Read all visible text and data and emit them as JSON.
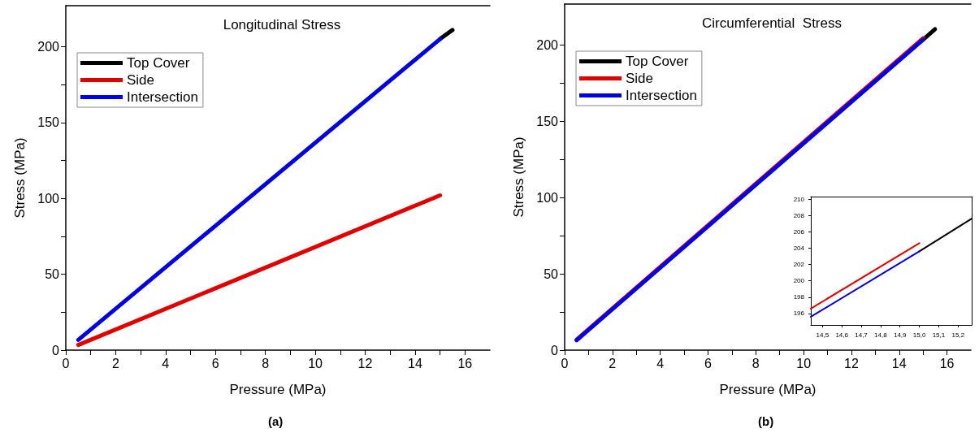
{
  "chart_data": [
    {
      "type": "line",
      "title": "Longitudinal Stress",
      "xlabel": "Pressure (MPa)",
      "ylabel": "Stress (MPa)",
      "annotations": [
        "(a)"
      ],
      "legend": "top left",
      "grid": false,
      "xlim": [
        0,
        17
      ],
      "ylim": [
        0,
        227
      ],
      "xticks": [
        0,
        {
          "value": 1,
          "label": null
        },
        2,
        {
          "value": 3,
          "label": null
        },
        4,
        {
          "value": 5,
          "label": null
        },
        6,
        {
          "value": 7,
          "label": null
        },
        8,
        {
          "value": 9,
          "label": null
        },
        10,
        {
          "value": 11,
          "label": null
        },
        12,
        {
          "value": 13,
          "label": null
        },
        14,
        {
          "value": 15,
          "label": null
        },
        16
      ],
      "yticks": [
        0,
        {
          "value": 25,
          "label": null
        },
        50,
        {
          "value": 75,
          "label": null
        },
        100,
        {
          "value": 125,
          "label": null
        },
        150,
        {
          "value": 175,
          "label": null
        },
        200
      ],
      "series": [
        {
          "name": "Top Cover",
          "color": "#000000",
          "x": [
            15,
            15.5
          ],
          "values": [
            205,
            211
          ]
        },
        {
          "name": "Side",
          "color": "#e00000",
          "x": [
            0.5,
            15
          ],
          "values": [
            3.4,
            102
          ]
        },
        {
          "name": "Intersection",
          "color": "#0000e0",
          "x": [
            0.5,
            15
          ],
          "values": [
            6.8,
            205
          ]
        }
      ]
    },
    {
      "type": "line",
      "title": "Circumferential  Stress",
      "xlabel": "Pressure (MPa)",
      "ylabel": "Stress (MPa)",
      "annotations": [
        "(b)"
      ],
      "legend": "top left",
      "grid": false,
      "xlim": [
        0,
        17
      ],
      "ylim": [
        0,
        227
      ],
      "xticks": [
        0,
        {
          "value": 1,
          "label": null
        },
        2,
        {
          "value": 3,
          "label": null
        },
        4,
        {
          "value": 5,
          "label": null
        },
        6,
        {
          "value": 7,
          "label": null
        },
        8,
        {
          "value": 9,
          "label": null
        },
        10,
        {
          "value": 11,
          "label": null
        },
        12,
        {
          "value": 13,
          "label": null
        },
        14,
        {
          "value": 15,
          "label": null
        },
        16
      ],
      "yticks": [
        0,
        {
          "value": 25,
          "label": null
        },
        50,
        {
          "value": 75,
          "label": null
        },
        100,
        {
          "value": 125,
          "label": null
        },
        150,
        {
          "value": 175,
          "label": null
        },
        200
      ],
      "series": [
        {
          "name": "Top Cover",
          "color": "#000000",
          "x": [
            15,
            15.5
          ],
          "values": [
            203.6,
            210.5
          ]
        },
        {
          "name": "Side",
          "color": "#e00000",
          "x": [
            0.5,
            15
          ],
          "values": [
            6.9,
            204.6
          ]
        },
        {
          "name": "Intersection",
          "color": "#0000e0",
          "x": [
            0.5,
            15
          ],
          "values": [
            6.5,
            203.6
          ]
        }
      ]
    },
    {
      "type": "line",
      "grid": false,
      "xlim": [
        14.44,
        15.27
      ],
      "ylim": [
        194.6,
        210.3
      ],
      "xticks": [
        {
          "value": 14.5,
          "label": "14,5"
        },
        {
          "value": 14.6,
          "label": "14,6"
        },
        {
          "value": 14.7,
          "label": "14,7"
        },
        {
          "value": 14.8,
          "label": "14,8"
        },
        {
          "value": 14.9,
          "label": "14,9"
        },
        {
          "value": 15,
          "label": "15,0"
        },
        {
          "value": 15.1,
          "label": "15,1"
        },
        {
          "value": 15.2,
          "label": "15,2"
        }
      ],
      "yticks": [
        196,
        198,
        200,
        202,
        204,
        206,
        208,
        210
      ],
      "series": [
        {
          "color": "#000000",
          "x": [
            15,
            15.27
          ],
          "values": [
            203.6,
            207.6
          ]
        },
        {
          "color": "#e00000",
          "x": [
            14.44,
            15
          ],
          "values": [
            196.6,
            204.6
          ]
        },
        {
          "color": "#0000e0",
          "x": [
            14.44,
            15
          ],
          "values": [
            195.6,
            203.6
          ]
        }
      ]
    }
  ]
}
